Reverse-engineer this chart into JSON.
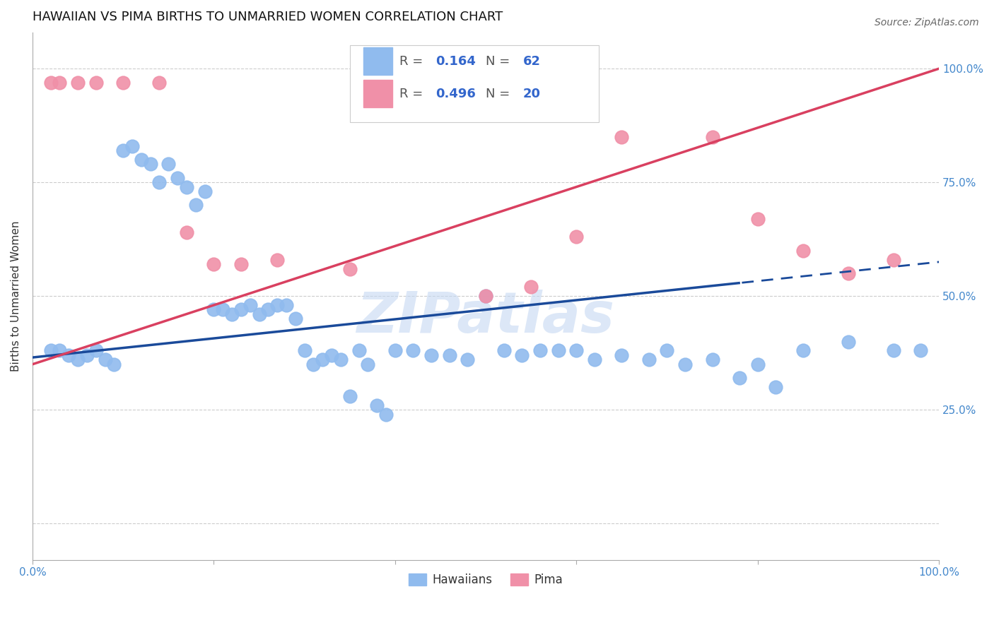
{
  "title": "HAWAIIAN VS PIMA BIRTHS TO UNMARRIED WOMEN CORRELATION CHART",
  "source": "Source: ZipAtlas.com",
  "ylabel": "Births to Unmarried Women",
  "xlim": [
    0.0,
    100.0
  ],
  "ylim": [
    -8.0,
    108.0
  ],
  "hawaiian_color": "#90bbee",
  "pima_color": "#f090a8",
  "blue_line_color": "#1a4a9a",
  "pink_line_color": "#d94060",
  "watermark_color": "#c5d8f2",
  "R_hawaiian": 0.164,
  "N_hawaiian": 62,
  "R_pima": 0.496,
  "N_pima": 20,
  "hawaiian_x": [
    2,
    3,
    4,
    5,
    6,
    7,
    8,
    9,
    10,
    11,
    12,
    13,
    14,
    15,
    16,
    17,
    18,
    19,
    20,
    21,
    22,
    23,
    24,
    25,
    26,
    27,
    28,
    29,
    30,
    31,
    32,
    33,
    34,
    35,
    36,
    37,
    38,
    39,
    40,
    42,
    44,
    46,
    48,
    50,
    52,
    54,
    56,
    58,
    60,
    62,
    65,
    68,
    70,
    72,
    75,
    78,
    80,
    82,
    85,
    90,
    95,
    98
  ],
  "hawaiian_y": [
    38,
    38,
    37,
    36,
    37,
    38,
    36,
    35,
    82,
    83,
    80,
    79,
    75,
    79,
    76,
    74,
    70,
    73,
    47,
    47,
    46,
    47,
    48,
    46,
    47,
    48,
    48,
    45,
    38,
    35,
    36,
    37,
    36,
    28,
    38,
    35,
    26,
    24,
    38,
    38,
    37,
    37,
    36,
    50,
    38,
    37,
    38,
    38,
    38,
    36,
    37,
    36,
    38,
    35,
    36,
    32,
    35,
    30,
    38,
    40,
    38,
    38
  ],
  "pima_x": [
    2,
    3,
    5,
    7,
    10,
    14,
    17,
    20,
    23,
    27,
    35,
    50,
    55,
    60,
    65,
    75,
    80,
    85,
    90,
    95
  ],
  "pima_y": [
    97,
    97,
    97,
    97,
    97,
    97,
    64,
    57,
    57,
    58,
    56,
    50,
    52,
    63,
    85,
    85,
    67,
    60,
    55,
    58
  ],
  "hawaiian_slope": 0.21,
  "hawaiian_intercept": 36.5,
  "pima_slope": 0.65,
  "pima_intercept": 35.0,
  "dash_start_x": 78,
  "tick_fontsize": 11,
  "axis_label_fontsize": 11,
  "title_fontsize": 13,
  "background_color": "#ffffff",
  "grid_color": "#cccccc",
  "tick_color": "#4488cc",
  "spine_color": "#aaaaaa"
}
